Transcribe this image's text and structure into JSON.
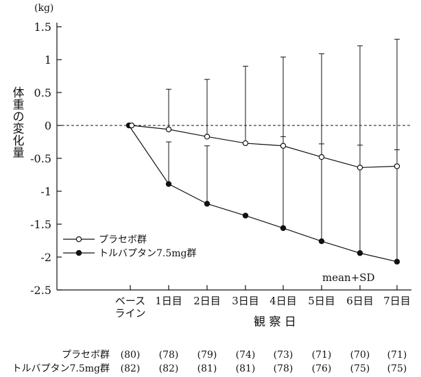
{
  "chart_data": {
    "type": "line",
    "title": "",
    "unit_label": "(kg)",
    "ylabel": "体重の変化量",
    "xlabel": "観 察 日",
    "ylim": [
      -2.5,
      1.5
    ],
    "y_ticks": [
      "1.5",
      "1",
      "0.5",
      "0",
      "-0.5",
      "-1",
      "-1.5",
      "-2",
      "-2.5"
    ],
    "y_tick_values": [
      1.5,
      1,
      0.5,
      0,
      -0.5,
      -1,
      -1.5,
      -2,
      -2.5
    ],
    "categories": [
      "ベース\nライン",
      "1日目",
      "2日目",
      "3日目",
      "4日目",
      "5日目",
      "6日目",
      "7日目"
    ],
    "reference_line": 0,
    "grid": false,
    "legend_position": "left-bottom",
    "annotation": "mean+SD",
    "series": [
      {
        "name": "プラセボ群",
        "marker": "open-circle",
        "values": [
          0,
          -0.06,
          -0.17,
          -0.27,
          -0.31,
          -0.48,
          -0.64,
          -0.62
        ],
        "sd_upper": [
          null,
          0.55,
          0.7,
          0.9,
          1.04,
          1.09,
          1.21,
          1.31
        ],
        "sd_lower": [
          null,
          null,
          null,
          null,
          null,
          null,
          null,
          null
        ],
        "n": [
          "(80)",
          "(78)",
          "(79)",
          "(74)",
          "(73)",
          "(71)",
          "(70)",
          "(71)"
        ]
      },
      {
        "name": "トルバプタン7.5mg群",
        "marker": "filled-circle",
        "values": [
          0,
          -0.89,
          -1.19,
          -1.37,
          -1.56,
          -1.76,
          -1.94,
          -2.07
        ],
        "sd_upper": [
          null,
          -0.25,
          -0.31,
          null,
          -0.17,
          -0.28,
          -0.3,
          -0.37
        ],
        "sd_lower": [
          null,
          null,
          null,
          null,
          null,
          null,
          null,
          null
        ],
        "n": [
          "(82)",
          "(82)",
          "(81)",
          "(81)",
          "(78)",
          "(76)",
          "(75)",
          "(75)"
        ]
      }
    ]
  }
}
